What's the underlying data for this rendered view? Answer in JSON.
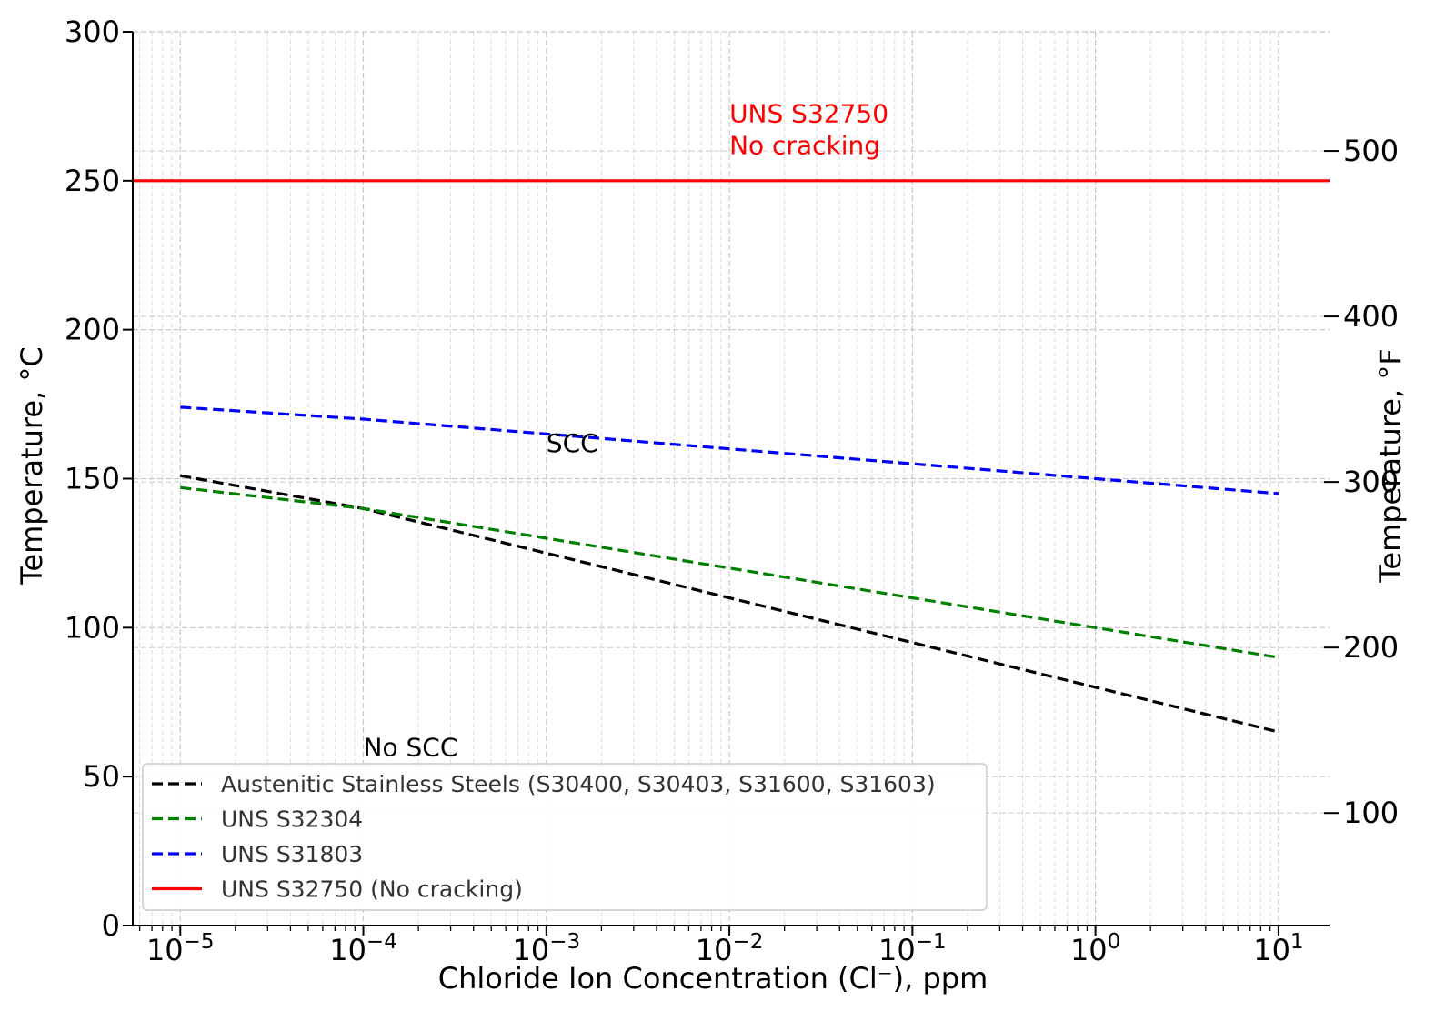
{
  "chart_data": {
    "type": "line",
    "xlabel": "Chloride Ion Concentration (Cl⁻), ppm",
    "ylabel": "Temperature, °C",
    "ylabel_right": "Temperature, °F",
    "xscale": "log",
    "xlim": [
      5.5e-06,
      19
    ],
    "ylim": [
      0,
      300
    ],
    "y2lim": [
      32,
      572
    ],
    "x_ticks": [
      1e-05,
      0.0001,
      0.001,
      0.01,
      0.1,
      1,
      10
    ],
    "x_tick_labels": [
      {
        "base": "10",
        "exp": "−5"
      },
      {
        "base": "10",
        "exp": "−4"
      },
      {
        "base": "10",
        "exp": "−3"
      },
      {
        "base": "10",
        "exp": "−2"
      },
      {
        "base": "10",
        "exp": "−1"
      },
      {
        "base": "10",
        "exp": "0"
      },
      {
        "base": "10",
        "exp": "1"
      }
    ],
    "y_ticks": [
      0,
      50,
      100,
      150,
      200,
      250,
      300
    ],
    "y_tick_labels": [
      "0",
      "50",
      "100",
      "150",
      "200",
      "250",
      "300"
    ],
    "y2_ticks": [
      100,
      200,
      300,
      400,
      500
    ],
    "y2_tick_labels": [
      "100",
      "200",
      "300",
      "400",
      "500"
    ],
    "grid": true,
    "legend_position": "lower-left",
    "series": [
      {
        "name": "Austenitic Stainless Steels (S30400, S30403, S31600, S31603)",
        "color": "#000000",
        "dash": "dashed",
        "x": [
          1e-05,
          0.0001,
          0.001,
          0.01,
          0.1,
          1,
          10
        ],
        "y": [
          151,
          140,
          125,
          110,
          95,
          80,
          65
        ]
      },
      {
        "name": "UNS S32304",
        "color": "#008000",
        "dash": "dashed",
        "x": [
          1e-05,
          0.0001,
          0.001,
          0.01,
          0.1,
          1,
          10
        ],
        "y": [
          147,
          140,
          130,
          120,
          110,
          100,
          90
        ]
      },
      {
        "name": "UNS S31803",
        "color": "#0000ff",
        "dash": "dashed",
        "x": [
          1e-05,
          0.0001,
          0.001,
          0.01,
          0.1,
          1,
          10
        ],
        "y": [
          174,
          170,
          165,
          160,
          155,
          150,
          145
        ]
      },
      {
        "name": "UNS S32750 (No cracking)",
        "color": "#ff0000",
        "dash": "solid",
        "x": [
          5.5e-06,
          19
        ],
        "y": [
          250,
          250
        ]
      }
    ],
    "annotations": [
      {
        "id": "annotation-uns-s32750",
        "lines": [
          "UNS S32750",
          "No cracking"
        ],
        "x": 0.01,
        "y": 262,
        "color": "#ff0000"
      },
      {
        "id": "annotation-scc",
        "lines": [
          "SCC"
        ],
        "x": 0.001,
        "y": 162,
        "color": "#000000"
      },
      {
        "id": "annotation-no-scc",
        "lines": [
          "No SCC"
        ],
        "x": 0.0001,
        "y": 60,
        "color": "#000000"
      }
    ]
  }
}
